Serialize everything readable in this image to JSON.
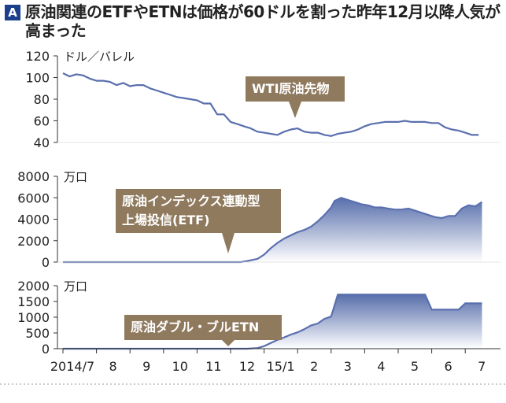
{
  "header": {
    "badge": "A",
    "title": "原油関連のETFやETNは価格が60ドルを割った昨年12月以降人気が高まった"
  },
  "colors": {
    "line": "#5a6fae",
    "fill_top": "#5068a8",
    "fill_bottom": "#ffffff",
    "callout": "#8f7a5e",
    "axis": "#333333",
    "badge": "#1b3f8b"
  },
  "x_axis": {
    "tick_labels": [
      "2014/7",
      "8",
      "9",
      "10",
      "11",
      "12",
      "15/1",
      "2",
      "3",
      "4",
      "5",
      "6",
      "7"
    ]
  },
  "chart_data": [
    {
      "type": "line",
      "unit": "ドル／バレル",
      "ylim": [
        40,
        120
      ],
      "yticks": [
        40,
        60,
        80,
        100,
        120
      ],
      "callout": "WTI原油先物",
      "x": [
        0,
        0.2,
        0.4,
        0.6,
        0.8,
        1.0,
        1.2,
        1.4,
        1.6,
        1.8,
        2.0,
        2.2,
        2.4,
        2.6,
        2.8,
        3.0,
        3.2,
        3.4,
        3.6,
        3.8,
        4.0,
        4.2,
        4.4,
        4.6,
        4.8,
        5.0,
        5.2,
        5.4,
        5.6,
        5.8,
        6.0,
        6.2,
        6.4,
        6.6,
        6.8,
        7.0,
        7.2,
        7.4,
        7.6,
        7.8,
        8.0,
        8.2,
        8.4,
        8.6,
        8.8,
        9.0,
        9.2,
        9.4,
        9.6,
        9.8,
        10.0,
        10.2,
        10.4,
        10.6,
        10.8,
        11.0,
        11.2,
        11.4,
        11.6,
        11.8,
        12.0,
        12.2,
        12.4
      ],
      "values": [
        104,
        101,
        103,
        102,
        99,
        97,
        97,
        96,
        93,
        95,
        92,
        93,
        93,
        90,
        88,
        86,
        84,
        82,
        81,
        80,
        79,
        76,
        76,
        66,
        66,
        59,
        57,
        55,
        53,
        50,
        49,
        48,
        47,
        50,
        52,
        53,
        50,
        49,
        49,
        47,
        46,
        48,
        49,
        50,
        52,
        55,
        57,
        58,
        59,
        59,
        59,
        60,
        59,
        59,
        59,
        58,
        58,
        54,
        52,
        51,
        49,
        47,
        47
      ]
    },
    {
      "type": "area",
      "unit": "万口",
      "ylim": [
        0,
        8000
      ],
      "yticks": [
        0,
        2000,
        4000,
        6000,
        8000
      ],
      "callout": "原油インデックス連動型上場投信(ETF)",
      "callout_lines": [
        "原油インデックス連動型",
        "上場投信(ETF)"
      ],
      "x": [
        0,
        1,
        2,
        3,
        4,
        5.3,
        5.5,
        5.8,
        6.0,
        6.2,
        6.4,
        6.6,
        6.8,
        7.0,
        7.2,
        7.4,
        7.6,
        7.8,
        8.0,
        8.1,
        8.3,
        8.5,
        8.7,
        8.9,
        9.1,
        9.3,
        9.5,
        9.7,
        9.9,
        10.1,
        10.3,
        10.5,
        10.7,
        10.9,
        11.1,
        11.3,
        11.5,
        11.7,
        11.9,
        12.1,
        12.3,
        12.5
      ],
      "values": [
        0,
        0,
        0,
        0,
        0,
        0,
        100,
        300,
        700,
        1300,
        1800,
        2200,
        2500,
        2800,
        3000,
        3300,
        3800,
        4400,
        5100,
        5700,
        6000,
        5800,
        5600,
        5400,
        5300,
        5100,
        5100,
        5000,
        4900,
        4900,
        5000,
        4800,
        4600,
        4400,
        4200,
        4100,
        4300,
        4300,
        5000,
        5300,
        5200,
        5600
      ]
    },
    {
      "type": "area",
      "unit": "万口",
      "ylim": [
        0,
        2000
      ],
      "yticks": [
        0,
        500,
        1000,
        1500,
        2000
      ],
      "callout": "原油ダブル・ブルETN",
      "x": [
        0,
        1,
        2,
        3,
        4,
        5.5,
        5.8,
        6.0,
        6.2,
        6.4,
        6.6,
        6.8,
        7.0,
        7.2,
        7.4,
        7.6,
        7.8,
        8.0,
        8.2,
        8.4,
        8.6,
        8.8,
        9.0,
        9.2,
        9.4,
        9.6,
        9.8,
        10.0,
        10.2,
        10.4,
        10.6,
        10.8,
        11.0,
        11.2,
        11.4,
        11.6,
        11.8,
        12.0,
        12.5
      ],
      "values": [
        0,
        0,
        0,
        0,
        0,
        0,
        20,
        80,
        180,
        280,
        360,
        450,
        520,
        620,
        740,
        800,
        950,
        1020,
        1720,
        1720,
        1720,
        1720,
        1720,
        1720,
        1720,
        1720,
        1720,
        1720,
        1720,
        1720,
        1720,
        1720,
        1240,
        1240,
        1240,
        1240,
        1240,
        1440,
        1440
      ]
    }
  ]
}
